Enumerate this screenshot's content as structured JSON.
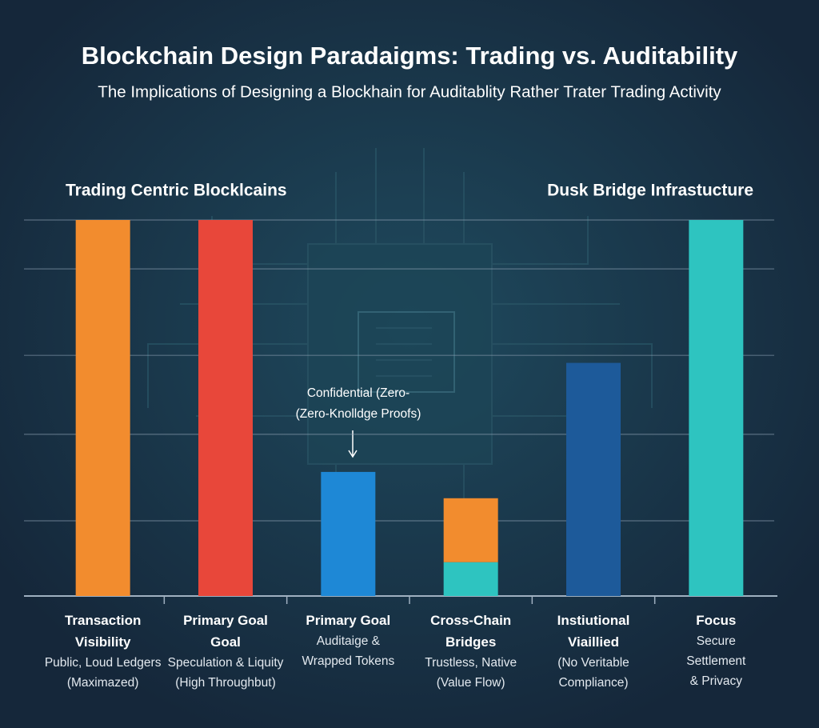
{
  "chart_data": {
    "type": "bar",
    "title": "Blockchain Design Paradaigms: Trading vs. Auditability",
    "subtitle": "The Implications of Designing a Blockhain for Auditablity Rather Trater Trading Activity",
    "group_labels": [
      "Trading Centric Blocklcains",
      "Dusk Bridge Infrastucture"
    ],
    "categories": [
      "Transaction Visibility",
      "Primary Goal Goal",
      "Primary Goal",
      "Cross-Chain Bridges",
      "Instiutional Viaillied",
      "Focus"
    ],
    "descriptions": [
      [
        "Public, Loud Ledgers",
        "(Maximazed)"
      ],
      [
        "Speculation & Liquity",
        "(High Throughbut)"
      ],
      [
        "Auditaige &",
        "Wrapped Tokens"
      ],
      [
        "Trustless, Native",
        "(Value Flow)"
      ],
      [
        "(No Veritable",
        "Compliance)"
      ],
      [
        "Secure",
        "Settlement",
        "& Privacy"
      ]
    ],
    "values": [
      100,
      100,
      33,
      [
        9,
        17
      ],
      62,
      100
    ],
    "colors": [
      "#f28c2e",
      "#e8473a",
      "#1e88d6",
      [
        "#2ec4c0",
        "#f28c2e"
      ],
      "#1d5a9a",
      "#2ec4c0"
    ],
    "annotation": [
      "Confidential (Zero-",
      "(Zero-Knolldge Proofs)"
    ],
    "ylim": [
      0,
      100
    ],
    "gridlines": [
      20,
      43,
      64,
      87,
      100
    ]
  }
}
